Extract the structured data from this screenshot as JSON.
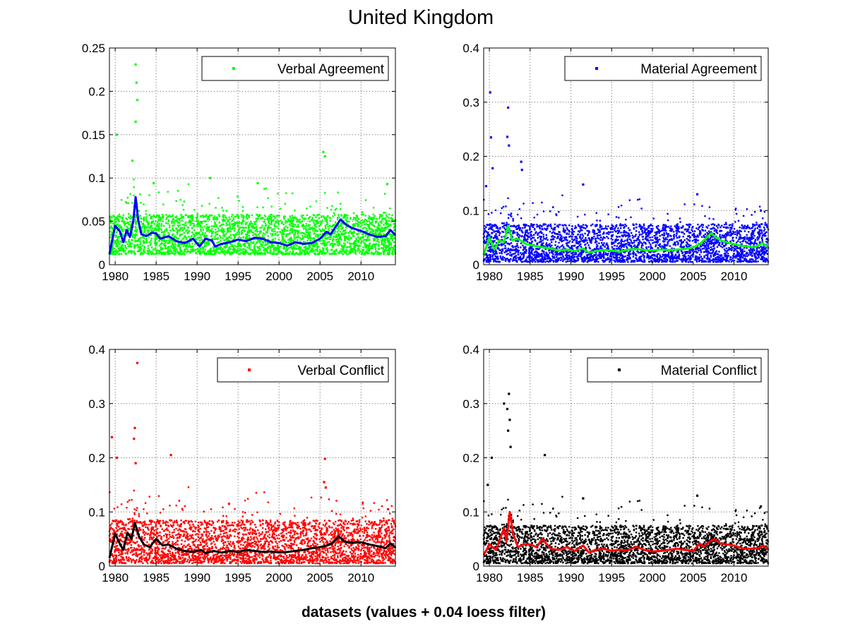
{
  "figure": {
    "title": "United Kingdom",
    "xlabel": "datasets (values + 0.04 loess filter)"
  },
  "chart_data": [
    {
      "type": "scatter",
      "legend": "Verbal Agreement",
      "legend_position": "top-right",
      "grid": true,
      "xlim": [
        1979.3,
        2014.2
      ],
      "ylim": [
        0,
        0.25
      ],
      "xticks": [
        1980,
        1985,
        1990,
        1995,
        2000,
        2005,
        2010
      ],
      "yticks": [
        0,
        0.05,
        0.1,
        0.15,
        0.2,
        0.25
      ],
      "ytick_labels": [
        "0",
        "0.05",
        "0.1",
        "0.15",
        "0.2",
        "0.25"
      ],
      "point_color": "#00ff00",
      "line_color": "#0000ff",
      "scatter_summary": {
        "typical_low": 0.012,
        "typical_high": 0.058,
        "density": "very dense daily points 1979-2014"
      },
      "notable_points": [
        [
          1980.2,
          0.15
        ],
        [
          1982.1,
          0.12
        ],
        [
          1982.5,
          0.231
        ],
        [
          1982.6,
          0.21
        ],
        [
          1982.7,
          0.19
        ],
        [
          1982.5,
          0.165
        ],
        [
          1991.6,
          0.1
        ],
        [
          1997.4,
          0.094
        ],
        [
          2005.4,
          0.13
        ],
        [
          2005.6,
          0.125
        ],
        [
          2013.2,
          0.093
        ],
        [
          1984.7,
          0.094
        ]
      ],
      "smooth": [
        [
          1979.3,
          0.012
        ],
        [
          1980.0,
          0.045
        ],
        [
          1980.6,
          0.038
        ],
        [
          1981.0,
          0.026
        ],
        [
          1981.4,
          0.04
        ],
        [
          1981.8,
          0.032
        ],
        [
          1982.2,
          0.05
        ],
        [
          1982.5,
          0.078
        ],
        [
          1982.8,
          0.052
        ],
        [
          1983.2,
          0.035
        ],
        [
          1983.8,
          0.033
        ],
        [
          1984.5,
          0.037
        ],
        [
          1985.0,
          0.036
        ],
        [
          1985.5,
          0.03
        ],
        [
          1986.5,
          0.033
        ],
        [
          1987.5,
          0.027
        ],
        [
          1988.5,
          0.025
        ],
        [
          1989.5,
          0.03
        ],
        [
          1990.3,
          0.021
        ],
        [
          1991.0,
          0.03
        ],
        [
          1991.8,
          0.028
        ],
        [
          1992.2,
          0.021
        ],
        [
          1993.0,
          0.024
        ],
        [
          1994.0,
          0.026
        ],
        [
          1995.0,
          0.029
        ],
        [
          1996.0,
          0.027
        ],
        [
          1997.0,
          0.031
        ],
        [
          1998.0,
          0.03
        ],
        [
          1999.0,
          0.026
        ],
        [
          2000.0,
          0.025
        ],
        [
          2001.0,
          0.022
        ],
        [
          2002.0,
          0.026
        ],
        [
          2003.0,
          0.024
        ],
        [
          2004.0,
          0.025
        ],
        [
          2005.0,
          0.03
        ],
        [
          2005.8,
          0.038
        ],
        [
          2006.3,
          0.035
        ],
        [
          2007.0,
          0.045
        ],
        [
          2007.5,
          0.052
        ],
        [
          2008.2,
          0.046
        ],
        [
          2009.0,
          0.042
        ],
        [
          2010.0,
          0.039
        ],
        [
          2011.0,
          0.035
        ],
        [
          2012.0,
          0.032
        ],
        [
          2013.0,
          0.033
        ],
        [
          2013.6,
          0.04
        ],
        [
          2014.2,
          0.034
        ]
      ]
    },
    {
      "type": "scatter",
      "legend": "Material Agreement",
      "legend_position": "top-right",
      "grid": true,
      "xlim": [
        1979.3,
        2014.2
      ],
      "ylim": [
        0,
        0.4
      ],
      "xticks": [
        1980,
        1985,
        1990,
        1995,
        2000,
        2005,
        2010
      ],
      "yticks": [
        0,
        0.1,
        0.2,
        0.3,
        0.4
      ],
      "ytick_labels": [
        "0",
        "0.1",
        "0.2",
        "0.3",
        "0.4"
      ],
      "point_color": "#0000ff",
      "line_color": "#00ff00",
      "scatter_summary": {
        "typical_low": 0.005,
        "typical_high": 0.075,
        "density": "very dense daily points 1979-2014"
      },
      "notable_points": [
        [
          1980.1,
          0.318
        ],
        [
          1980.2,
          0.235
        ],
        [
          1980.4,
          0.178
        ],
        [
          1982.3,
          0.29
        ],
        [
          1982.2,
          0.236
        ],
        [
          1982.4,
          0.22
        ],
        [
          1983.9,
          0.19
        ],
        [
          1984.0,
          0.175
        ],
        [
          1991.5,
          0.148
        ],
        [
          2005.5,
          0.13
        ],
        [
          2013.3,
          0.1
        ],
        [
          1979.6,
          0.145
        ]
      ],
      "smooth": [
        [
          1979.3,
          0.018
        ],
        [
          1980.0,
          0.05
        ],
        [
          1980.6,
          0.028
        ],
        [
          1981.2,
          0.045
        ],
        [
          1981.8,
          0.042
        ],
        [
          1982.3,
          0.072
        ],
        [
          1982.8,
          0.045
        ],
        [
          1983.5,
          0.048
        ],
        [
          1984.5,
          0.038
        ],
        [
          1985.5,
          0.035
        ],
        [
          1986.5,
          0.032
        ],
        [
          1987.5,
          0.03
        ],
        [
          1988.5,
          0.026
        ],
        [
          1989.5,
          0.028
        ],
        [
          1990.5,
          0.025
        ],
        [
          1991.5,
          0.03
        ],
        [
          1992.2,
          0.022
        ],
        [
          1993.0,
          0.025
        ],
        [
          1994.0,
          0.027
        ],
        [
          1995.0,
          0.026
        ],
        [
          1996.0,
          0.024
        ],
        [
          1997.0,
          0.028
        ],
        [
          1998.0,
          0.029
        ],
        [
          1999.0,
          0.027
        ],
        [
          2000.0,
          0.026
        ],
        [
          2001.0,
          0.028
        ],
        [
          2002.0,
          0.027
        ],
        [
          2003.0,
          0.028
        ],
        [
          2004.0,
          0.029
        ],
        [
          2005.0,
          0.032
        ],
        [
          2005.8,
          0.038
        ],
        [
          2006.5,
          0.048
        ],
        [
          2007.2,
          0.058
        ],
        [
          2007.8,
          0.05
        ],
        [
          2008.5,
          0.044
        ],
        [
          2009.5,
          0.04
        ],
        [
          2010.5,
          0.036
        ],
        [
          2011.5,
          0.034
        ],
        [
          2012.5,
          0.032
        ],
        [
          2013.5,
          0.04
        ],
        [
          2014.2,
          0.032
        ]
      ]
    },
    {
      "type": "scatter",
      "legend": "Verbal Conflict",
      "legend_position": "top-right",
      "grid": true,
      "xlim": [
        1979.3,
        2014.2
      ],
      "ylim": [
        0,
        0.4
      ],
      "xticks": [
        1980,
        1985,
        1990,
        1995,
        2000,
        2005,
        2010
      ],
      "yticks": [
        0,
        0.1,
        0.2,
        0.3,
        0.4
      ],
      "ytick_labels": [
        "0",
        "0.1",
        "0.2",
        "0.3",
        "0.4"
      ],
      "point_color": "#ff0000",
      "line_color": "#000000",
      "scatter_summary": {
        "typical_low": 0.005,
        "typical_high": 0.085,
        "density": "very dense daily points 1979-2014"
      },
      "notable_points": [
        [
          1979.6,
          0.238
        ],
        [
          1980.2,
          0.2
        ],
        [
          1982.7,
          0.375
        ],
        [
          1982.4,
          0.255
        ],
        [
          1982.3,
          0.235
        ],
        [
          1982.5,
          0.19
        ],
        [
          1986.8,
          0.205
        ],
        [
          2005.6,
          0.198
        ],
        [
          2005.5,
          0.155
        ],
        [
          2005.7,
          0.145
        ],
        [
          1993.9,
          0.115
        ],
        [
          2013.3,
          0.105
        ]
      ],
      "smooth": [
        [
          1979.3,
          0.015
        ],
        [
          1980.0,
          0.06
        ],
        [
          1980.6,
          0.04
        ],
        [
          1981.0,
          0.03
        ],
        [
          1981.5,
          0.062
        ],
        [
          1982.0,
          0.05
        ],
        [
          1982.4,
          0.08
        ],
        [
          1982.9,
          0.055
        ],
        [
          1983.5,
          0.04
        ],
        [
          1984.2,
          0.035
        ],
        [
          1985.0,
          0.05
        ],
        [
          1985.8,
          0.038
        ],
        [
          1986.5,
          0.04
        ],
        [
          1987.5,
          0.032
        ],
        [
          1988.5,
          0.028
        ],
        [
          1989.5,
          0.026
        ],
        [
          1990.5,
          0.03
        ],
        [
          1991.0,
          0.024
        ],
        [
          1992.0,
          0.028
        ],
        [
          1993.0,
          0.025
        ],
        [
          1994.0,
          0.028
        ],
        [
          1995.0,
          0.026
        ],
        [
          1996.0,
          0.03
        ],
        [
          1997.0,
          0.028
        ],
        [
          1998.0,
          0.026
        ],
        [
          1999.0,
          0.027
        ],
        [
          2000.0,
          0.025
        ],
        [
          2001.0,
          0.026
        ],
        [
          2002.0,
          0.028
        ],
        [
          2003.0,
          0.03
        ],
        [
          2004.0,
          0.033
        ],
        [
          2005.0,
          0.035
        ],
        [
          2005.8,
          0.038
        ],
        [
          2006.5,
          0.042
        ],
        [
          2007.3,
          0.055
        ],
        [
          2008.0,
          0.045
        ],
        [
          2009.0,
          0.043
        ],
        [
          2010.0,
          0.044
        ],
        [
          2011.0,
          0.04
        ],
        [
          2012.0,
          0.037
        ],
        [
          2013.0,
          0.033
        ],
        [
          2013.6,
          0.042
        ],
        [
          2014.2,
          0.034
        ]
      ]
    },
    {
      "type": "scatter",
      "legend": "Material Conflict",
      "legend_position": "top-right",
      "grid": true,
      "xlim": [
        1979.3,
        2014.2
      ],
      "ylim": [
        0,
        0.4
      ],
      "xticks": [
        1980,
        1985,
        1990,
        1995,
        2000,
        2005,
        2010
      ],
      "yticks": [
        0,
        0.1,
        0.2,
        0.3,
        0.4
      ],
      "ytick_labels": [
        "0",
        "0.1",
        "0.2",
        "0.3",
        "0.4"
      ],
      "point_color": "#000000",
      "line_color": "#ff0000",
      "scatter_summary": {
        "typical_low": 0.005,
        "typical_high": 0.075,
        "density": "very dense daily points 1979-2014"
      },
      "notable_points": [
        [
          1982.4,
          0.318
        ],
        [
          1981.8,
          0.3
        ],
        [
          1982.2,
          0.29
        ],
        [
          1982.5,
          0.27
        ],
        [
          1982.3,
          0.25
        ],
        [
          1982.6,
          0.22
        ],
        [
          1980.3,
          0.2
        ],
        [
          1986.8,
          0.205
        ],
        [
          1979.8,
          0.15
        ],
        [
          2005.5,
          0.13
        ],
        [
          1991.5,
          0.125
        ],
        [
          2013.3,
          0.11
        ]
      ],
      "smooth": [
        [
          1979.3,
          0.02
        ],
        [
          1980.0,
          0.04
        ],
        [
          1980.8,
          0.03
        ],
        [
          1981.3,
          0.05
        ],
        [
          1981.8,
          0.07
        ],
        [
          1982.1,
          0.045
        ],
        [
          1982.5,
          0.1
        ],
        [
          1982.9,
          0.06
        ],
        [
          1983.5,
          0.035
        ],
        [
          1984.2,
          0.04
        ],
        [
          1985.0,
          0.04
        ],
        [
          1985.8,
          0.035
        ],
        [
          1986.5,
          0.05
        ],
        [
          1987.5,
          0.032
        ],
        [
          1988.5,
          0.03
        ],
        [
          1989.5,
          0.035
        ],
        [
          1990.5,
          0.028
        ],
        [
          1991.5,
          0.038
        ],
        [
          1992.2,
          0.025
        ],
        [
          1993.0,
          0.03
        ],
        [
          1994.0,
          0.032
        ],
        [
          1995.0,
          0.028
        ],
        [
          1996.0,
          0.03
        ],
        [
          1997.0,
          0.029
        ],
        [
          1998.0,
          0.036
        ],
        [
          1999.0,
          0.03
        ],
        [
          2000.0,
          0.027
        ],
        [
          2001.0,
          0.028
        ],
        [
          2002.0,
          0.03
        ],
        [
          2003.0,
          0.032
        ],
        [
          2004.0,
          0.03
        ],
        [
          2005.0,
          0.028
        ],
        [
          2005.8,
          0.042
        ],
        [
          2006.3,
          0.036
        ],
        [
          2007.0,
          0.045
        ],
        [
          2007.6,
          0.05
        ],
        [
          2008.3,
          0.042
        ],
        [
          2009.0,
          0.04
        ],
        [
          2010.0,
          0.038
        ],
        [
          2011.0,
          0.033
        ],
        [
          2012.0,
          0.032
        ],
        [
          2013.0,
          0.033
        ],
        [
          2013.6,
          0.038
        ],
        [
          2014.2,
          0.03
        ]
      ]
    }
  ]
}
